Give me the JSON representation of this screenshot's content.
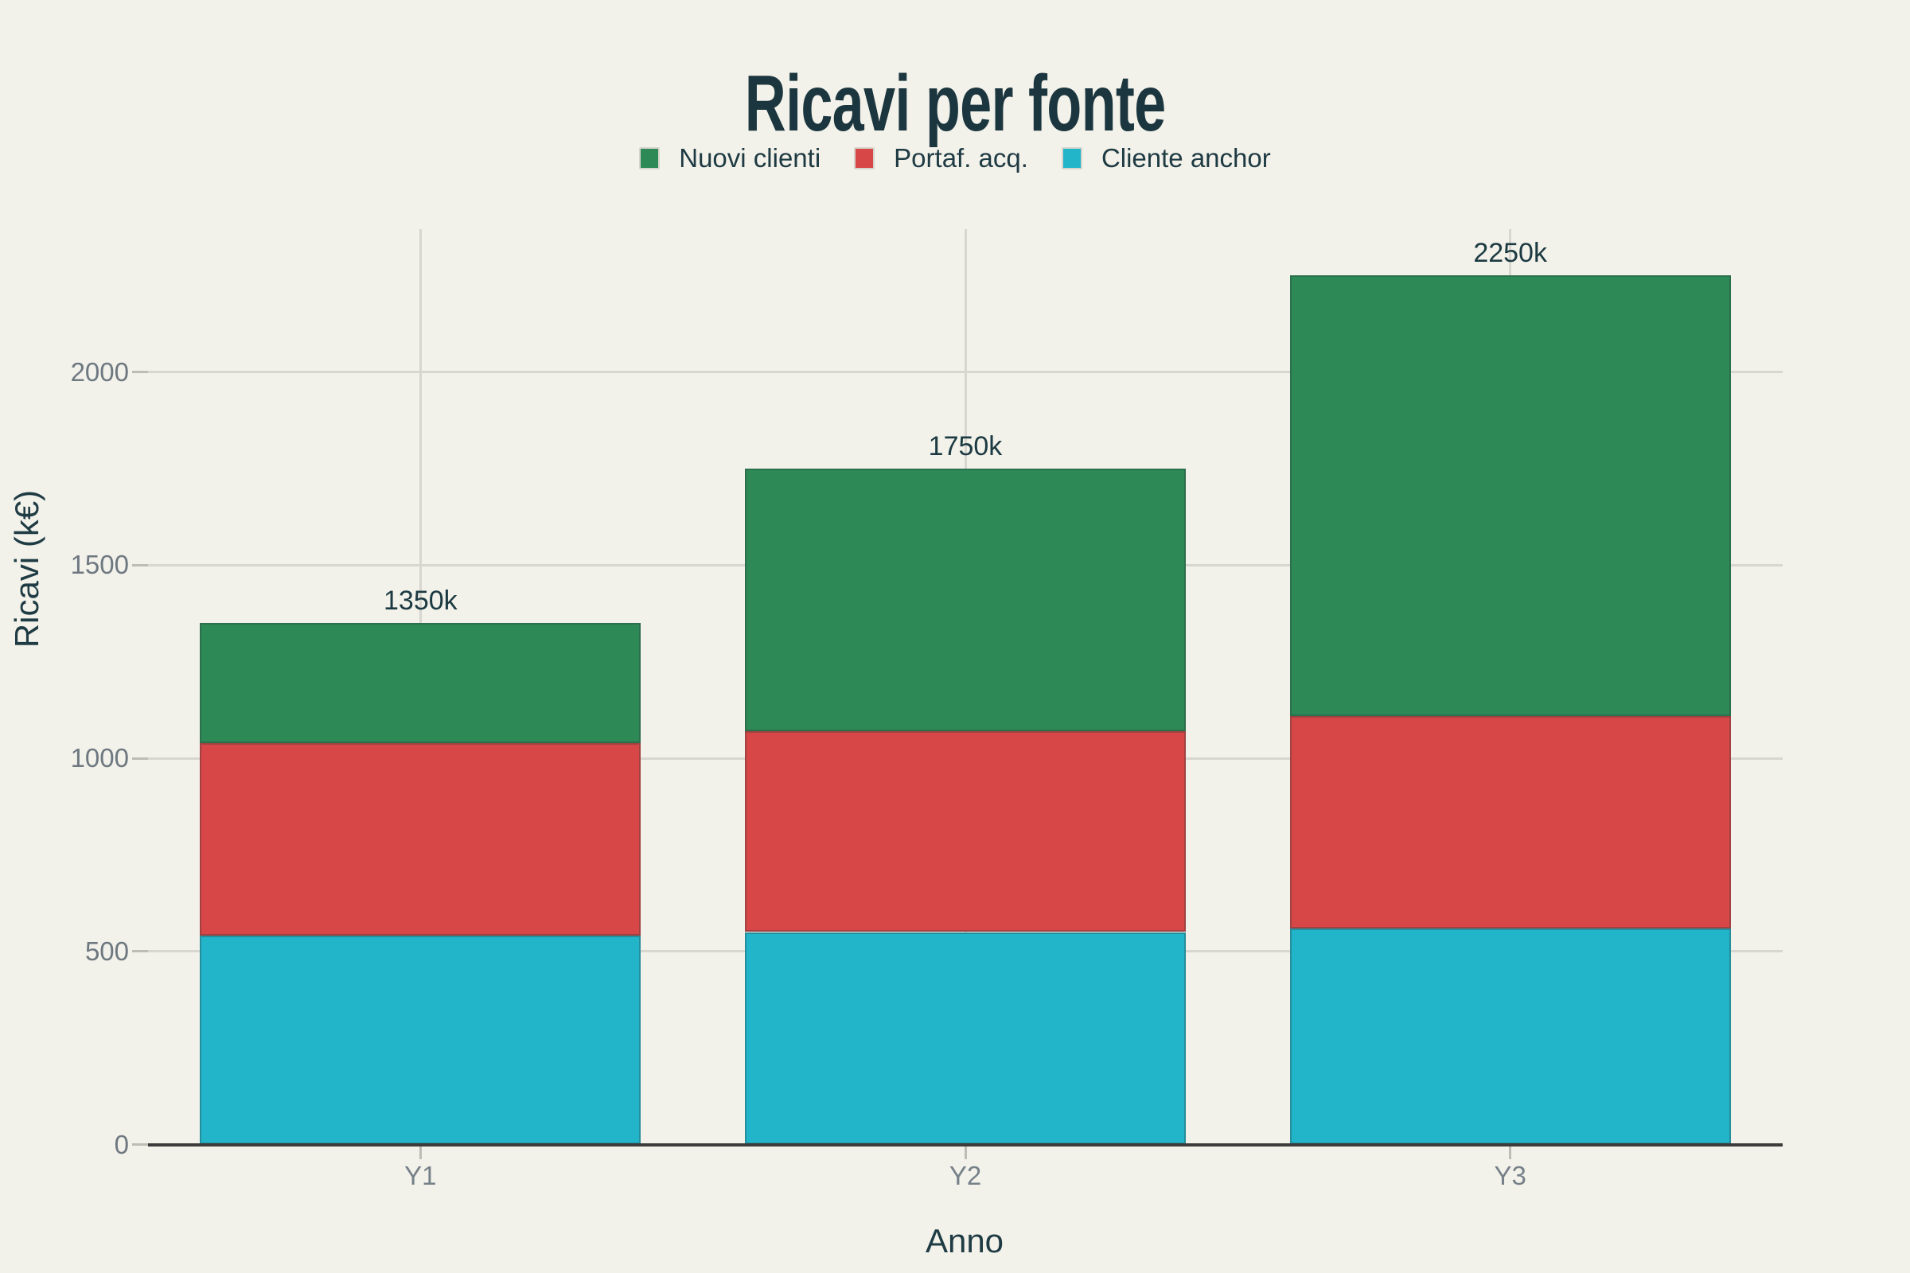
{
  "chart_data": {
    "type": "bar",
    "stacked": true,
    "title": "Ricavi per fonte",
    "xlabel": "Anno",
    "ylabel": "Ricavi (k€)",
    "categories": [
      "Y1",
      "Y2",
      "Y3"
    ],
    "series": [
      {
        "name": "Nuovi clienti",
        "color": "#2d8a56",
        "values": [
          310,
          680,
          1140
        ]
      },
      {
        "name": "Portaf. acq.",
        "color": "#d84747",
        "values": [
          500,
          520,
          550
        ]
      },
      {
        "name": "Cliente anchor",
        "color": "#22b5ca",
        "values": [
          540,
          550,
          560
        ]
      }
    ],
    "stack_order_bottom_to_top": [
      "Cliente anchor",
      "Portaf. acq.",
      "Nuovi clienti"
    ],
    "bar_total_labels": [
      "1350k",
      "1750k",
      "2250k"
    ],
    "bar_totals": [
      1350,
      1750,
      2250
    ],
    "y_ticks": [
      0,
      500,
      1000,
      1500,
      2000
    ],
    "ylim": [
      0,
      2370
    ],
    "grid": true,
    "legend_position": "top",
    "colors": {
      "background": "#f2f1ea",
      "title_text": "#1b363e",
      "axis_title_text": "#1f3b43",
      "tick_label_text": "#6e7880",
      "total_label_text": "#1c3a42",
      "gridline": "#d8d6d0",
      "axis_line": "#3c3c3a"
    }
  }
}
